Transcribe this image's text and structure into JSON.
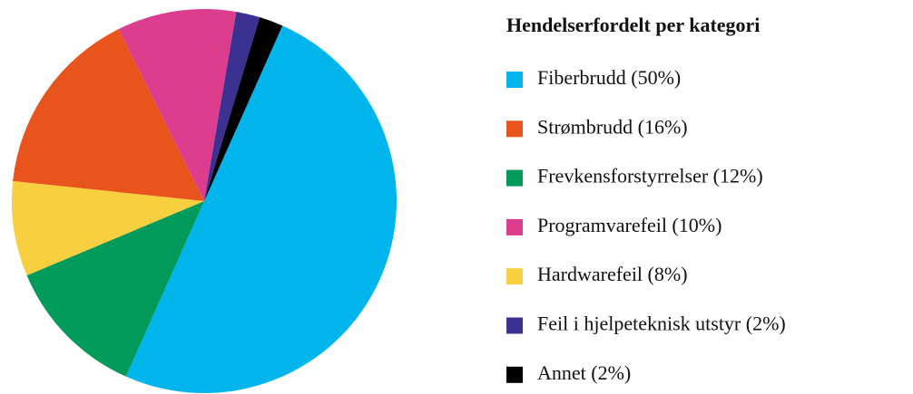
{
  "chart_data": {
    "type": "pie",
    "title": "Hendelserfordelt per kategori",
    "categories": [
      "Fiberbrudd (50%)",
      "Strømbrudd (16%)",
      "Frevkensforstyrrelser (12%)",
      "Programvarefeil (10%)",
      "Hardwarefeil (8%)",
      "Feil i hjelpeteknisk utstyr (2%)",
      "Annet (2%)"
    ],
    "values": [
      50,
      16,
      12,
      10,
      8,
      2,
      2
    ],
    "colors": [
      "#00b4ec",
      "#e8541b",
      "#009a5a",
      "#dd3d8e",
      "#f8cf3e",
      "#3a3190",
      "#000000"
    ],
    "legend": "right"
  }
}
